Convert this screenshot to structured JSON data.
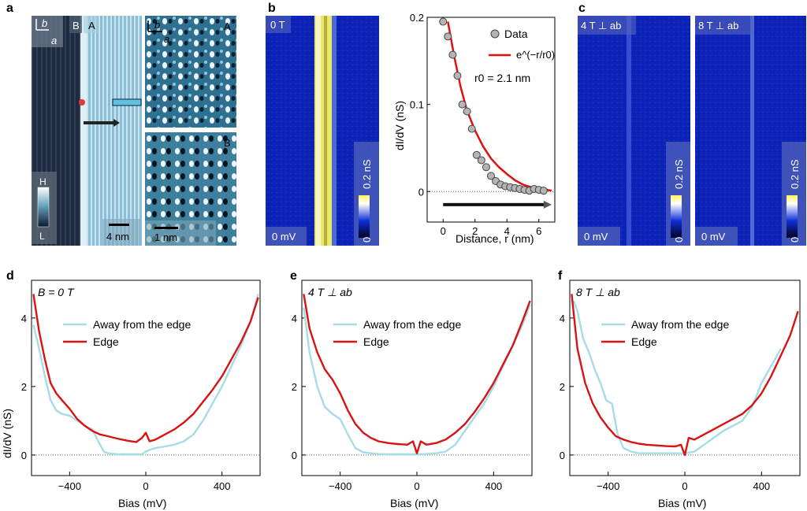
{
  "panel_labels": {
    "a": "a",
    "b": "b",
    "c": "c",
    "d": "d",
    "e": "e",
    "f": "f"
  },
  "panel_a": {
    "axis_b": "b",
    "axis_a": "a",
    "region_B": "B",
    "region_A": "A",
    "inset_top_region": "A",
    "inset_bottom_region": "B",
    "colorbar_high": "H",
    "colorbar_low": "L",
    "scale_main": "4 nm",
    "scale_inset": "1 nm"
  },
  "panel_b": {
    "map_field": "0 T",
    "map_bias": "0 mV",
    "colorbar_max": "0.2 nS",
    "colorbar_min": "0",
    "colors": {
      "map_bg": "#0a1fb3",
      "edge": "#f4f06a",
      "fit": "#e01010",
      "markers": "#b4b4b4"
    }
  },
  "panel_c": {
    "maps": [
      {
        "field": "4 T ⊥ ab",
        "bias": "0 mV",
        "cbar_max": "0.2 nS",
        "cbar_min": "0"
      },
      {
        "field": "8 T ⊥ ab",
        "bias": "0 mV",
        "cbar_max": "0.2 nS",
        "cbar_min": "0"
      }
    ]
  },
  "chart_data": [
    {
      "type": "scatter",
      "panel": "b",
      "xlabel": "Distance, r (nm)",
      "ylabel": "dI/dV (nS)",
      "xlim": [
        -1,
        7
      ],
      "ylim": [
        -0.035,
        0.2
      ],
      "xticks": [
        "0",
        "2",
        "4",
        "6"
      ],
      "yticks": [
        "0",
        "0.1",
        "0.2"
      ],
      "legend": {
        "data": "Data",
        "fit": "e^(−r/r0)"
      },
      "annotation": "r0 = 2.1 nm",
      "series": [
        {
          "name": "Data",
          "x": [
            0,
            0.3,
            0.6,
            0.9,
            1.2,
            1.5,
            1.8,
            2.1,
            2.4,
            2.7,
            3.0,
            3.3,
            3.6,
            3.9,
            4.2,
            4.5,
            4.8,
            5.1,
            5.4,
            5.7,
            6.0,
            6.3
          ],
          "y": [
            0.195,
            0.178,
            0.157,
            0.133,
            0.1,
            0.092,
            0.072,
            0.042,
            0.036,
            0.028,
            0.018,
            0.012,
            0.008,
            0.006,
            0.005,
            0.004,
            0.003,
            0.002,
            0.001,
            0.003,
            0.002,
            0.001
          ]
        },
        {
          "name": "e^(−r/r0)",
          "x": [
            0.3,
            0.7,
            1.1,
            1.5,
            2.0,
            2.5,
            3.0,
            3.5,
            4.0,
            4.5,
            5.0,
            5.5,
            6.0,
            6.5,
            6.8
          ],
          "y": [
            0.195,
            0.155,
            0.12,
            0.093,
            0.07,
            0.052,
            0.038,
            0.028,
            0.02,
            0.013,
            0.008,
            0.005,
            0.003,
            0.002,
            0.001
          ]
        }
      ],
      "arrow": {
        "from": 0,
        "to": 6.8,
        "y": -0.015
      }
    },
    {
      "type": "line",
      "panel": "d",
      "annotation": "B = 0 T",
      "xlabel": "Bias (mV)",
      "ylabel": "dI/dV (nS)",
      "xlim": [
        -600,
        600
      ],
      "ylim": [
        -0.6,
        5.1
      ],
      "xticks": [
        -400,
        0,
        400
      ],
      "yticks": [
        0,
        2,
        4
      ],
      "series": [
        {
          "name": "Away from the edge",
          "x": [
            -590,
            -560,
            -530,
            -500,
            -470,
            -440,
            -400,
            -360,
            -320,
            -280,
            -250,
            -220,
            -200,
            -150,
            -100,
            -50,
            -20,
            0,
            20,
            50,
            100,
            150,
            200,
            250,
            300,
            350,
            400,
            450,
            500,
            550,
            590
          ],
          "y": [
            3.8,
            3.1,
            2.3,
            1.6,
            1.3,
            1.2,
            1.15,
            1.0,
            0.85,
            0.75,
            0.4,
            0.1,
            0.05,
            0.02,
            0.02,
            0.02,
            0.02,
            0.1,
            0.15,
            0.2,
            0.25,
            0.3,
            0.4,
            0.6,
            1.0,
            1.5,
            2.0,
            2.6,
            3.2,
            3.9,
            4.7
          ]
        },
        {
          "name": "Edge",
          "x": [
            -590,
            -560,
            -530,
            -500,
            -470,
            -440,
            -400,
            -360,
            -320,
            -280,
            -240,
            -200,
            -150,
            -100,
            -50,
            -20,
            0,
            20,
            50,
            100,
            150,
            200,
            250,
            300,
            350,
            400,
            450,
            500,
            550,
            590
          ],
          "y": [
            4.7,
            3.6,
            2.8,
            2.1,
            1.8,
            1.6,
            1.35,
            1.05,
            0.85,
            0.7,
            0.6,
            0.55,
            0.48,
            0.42,
            0.38,
            0.5,
            0.65,
            0.4,
            0.45,
            0.6,
            0.75,
            0.95,
            1.2,
            1.55,
            1.9,
            2.3,
            2.8,
            3.3,
            3.9,
            4.6
          ]
        }
      ]
    },
    {
      "type": "line",
      "panel": "e",
      "annotation": "4 T ⊥ ab",
      "xlabel": "Bias (mV)",
      "ylabel": "",
      "xlim": [
        -600,
        600
      ],
      "ylim": [
        -0.6,
        5.1
      ],
      "xticks": [
        -400,
        0,
        400
      ],
      "yticks": [
        0,
        2,
        4
      ],
      "series": [
        {
          "name": "Away from the edge",
          "x": [
            -590,
            -560,
            -520,
            -480,
            -440,
            -400,
            -360,
            -320,
            -280,
            -240,
            -200,
            -150,
            -100,
            -50,
            0,
            50,
            100,
            150,
            200,
            250,
            300,
            350,
            400,
            450,
            500,
            550,
            590
          ],
          "y": [
            4.3,
            3.0,
            2.0,
            1.4,
            1.2,
            1.05,
            0.6,
            0.2,
            0.08,
            0.05,
            0.03,
            0.02,
            0.02,
            0.02,
            0.02,
            0.03,
            0.05,
            0.1,
            0.3,
            0.7,
            1.1,
            1.5,
            2.0,
            2.6,
            3.2,
            3.8,
            4.4
          ]
        },
        {
          "name": "Edge",
          "x": [
            -590,
            -560,
            -520,
            -480,
            -440,
            -400,
            -360,
            -320,
            -280,
            -240,
            -200,
            -150,
            -100,
            -50,
            -20,
            0,
            20,
            50,
            100,
            150,
            200,
            250,
            300,
            350,
            400,
            450,
            500,
            550,
            590
          ],
          "y": [
            4.7,
            3.7,
            3.0,
            2.5,
            2.2,
            1.8,
            1.3,
            0.9,
            0.65,
            0.5,
            0.4,
            0.35,
            0.32,
            0.3,
            0.4,
            0.05,
            0.4,
            0.3,
            0.35,
            0.45,
            0.65,
            0.9,
            1.25,
            1.65,
            2.1,
            2.65,
            3.2,
            3.9,
            4.5
          ]
        }
      ]
    },
    {
      "type": "line",
      "panel": "f",
      "annotation": "8 T ⊥ ab",
      "xlabel": "Bias (mV)",
      "ylabel": "",
      "xlim": [
        -600,
        600
      ],
      "ylim": [
        -0.6,
        5.1
      ],
      "xticks": [
        -400,
        0,
        400
      ],
      "yticks": [
        0,
        2,
        4
      ],
      "series": [
        {
          "name": "Away from the edge",
          "x": [
            -580,
            -560,
            -530,
            -500,
            -470,
            -440,
            -410,
            -380,
            -350,
            -320,
            -280,
            -240,
            -200,
            -150,
            -100,
            -50,
            0,
            50,
            100,
            150,
            200,
            250,
            300,
            350,
            400,
            450,
            500
          ],
          "y": [
            4.5,
            4.2,
            3.4,
            3.0,
            2.5,
            2.1,
            1.6,
            1.5,
            0.6,
            0.2,
            0.1,
            0.05,
            0.05,
            0.05,
            0.05,
            0.05,
            0.05,
            0.1,
            0.3,
            0.5,
            0.7,
            0.85,
            1.0,
            1.4,
            2.1,
            2.6,
            3.1
          ]
        },
        {
          "name": "Edge",
          "x": [
            -590,
            -560,
            -520,
            -480,
            -440,
            -400,
            -360,
            -320,
            -280,
            -240,
            -200,
            -150,
            -100,
            -50,
            -20,
            0,
            20,
            50,
            100,
            150,
            200,
            250,
            300,
            350,
            400,
            450,
            500,
            550,
            590
          ],
          "y": [
            4.7,
            3.1,
            2.1,
            1.5,
            1.1,
            0.8,
            0.55,
            0.45,
            0.38,
            0.33,
            0.3,
            0.28,
            0.26,
            0.25,
            0.3,
            0.0,
            0.5,
            0.45,
            0.6,
            0.75,
            0.9,
            1.05,
            1.2,
            1.45,
            1.8,
            2.3,
            2.9,
            3.5,
            4.2
          ]
        }
      ]
    }
  ],
  "legend_labels": {
    "away": "Away from the edge",
    "edge": "Edge"
  }
}
